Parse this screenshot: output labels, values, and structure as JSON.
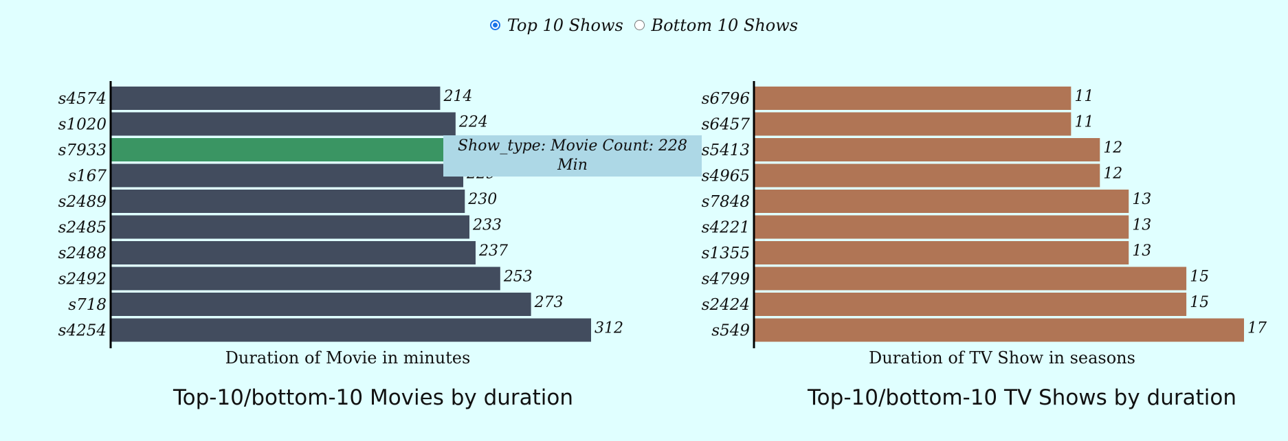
{
  "controls": {
    "options": [
      {
        "label": "Top 10 Shows",
        "checked": true
      },
      {
        "label": "Bottom 10 Shows",
        "checked": false
      }
    ]
  },
  "tooltip": {
    "text": "Show_type: Movie Count: 228 Min"
  },
  "chart_data": [
    {
      "type": "bar",
      "orientation": "horizontal",
      "title": "Top-10/bottom-10 Movies by duration",
      "xlabel": "Duration of Movie in minutes",
      "ylabel": "",
      "categories": [
        "s4574",
        "s1020",
        "s7933",
        "s167",
        "s2489",
        "s2485",
        "s2488",
        "s2492",
        "s718",
        "s4254"
      ],
      "values": [
        214,
        224,
        228,
        229,
        230,
        233,
        237,
        253,
        273,
        312
      ],
      "xlim": [
        0,
        312
      ],
      "color": "#424c5e",
      "highlight_color": "#3a9563",
      "highlighted_category": "s7933",
      "grid": false
    },
    {
      "type": "bar",
      "orientation": "horizontal",
      "title": "Top-10/bottom-10 TV Shows by duration",
      "xlabel": "Duration of TV Show in seasons",
      "ylabel": "",
      "categories": [
        "s6796",
        "s6457",
        "s5413",
        "s4965",
        "s7848",
        "s4221",
        "s1355",
        "s4799",
        "s2424",
        "s549"
      ],
      "values": [
        11,
        11,
        12,
        12,
        13,
        13,
        13,
        15,
        15,
        17
      ],
      "xlim": [
        0,
        17
      ],
      "color": "#b07555",
      "grid": false
    }
  ]
}
